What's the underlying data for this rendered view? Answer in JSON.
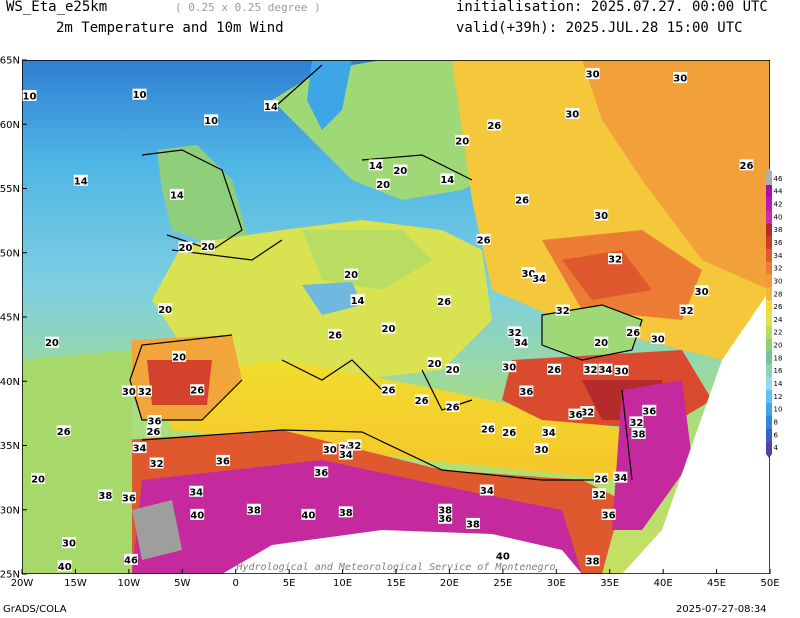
{
  "header": {
    "model": "WS_Eta_e25km",
    "resolution": "( 0.25 x 0.25 degree )",
    "product": "2m Temperature and 10m Wind",
    "init": "initialisation: 2025.07.27. 00:00 UTC",
    "valid": "valid(+39h): 2025.JUL.28 15:00 UTC"
  },
  "footer": {
    "left": "GrADS/COLA",
    "right": "2025-07-27-08:34",
    "watermark": "Hydrological and Meteorological Service of Montenegro"
  },
  "map": {
    "lon_ticks": [
      "20W",
      "15W",
      "10W",
      "5W",
      "0",
      "5E",
      "10E",
      "15E",
      "20E",
      "25E",
      "30E",
      "35E",
      "40E",
      "45E",
      "50E"
    ],
    "lat_ticks": [
      "65N",
      "60N",
      "55N",
      "50N",
      "45N",
      "40N",
      "35N",
      "30N",
      "25N"
    ],
    "contour_labels": [
      {
        "t": "10",
        "lon": -19.3,
        "lat": 62.2
      },
      {
        "t": "10",
        "lon": -9.0,
        "lat": 62.3
      },
      {
        "t": "10",
        "lon": -2.3,
        "lat": 60.3
      },
      {
        "t": "14",
        "lon": 3.3,
        "lat": 61.4
      },
      {
        "t": "14",
        "lon": -14.5,
        "lat": 55.6
      },
      {
        "t": "14",
        "lon": -5.5,
        "lat": 54.5
      },
      {
        "t": "14",
        "lon": 13.1,
        "lat": 56.8
      },
      {
        "t": "14",
        "lon": 19.8,
        "lat": 55.7
      },
      {
        "t": "14",
        "lon": 11.4,
        "lat": 46.3
      },
      {
        "t": "20",
        "lon": -4.7,
        "lat": 50.4
      },
      {
        "t": "20",
        "lon": -2.6,
        "lat": 50.5
      },
      {
        "t": "20",
        "lon": 10.8,
        "lat": 48.3
      },
      {
        "t": "20",
        "lon": 13.8,
        "lat": 55.3
      },
      {
        "t": "20",
        "lon": 15.4,
        "lat": 56.4
      },
      {
        "t": "20",
        "lon": 21.2,
        "lat": 58.7
      },
      {
        "t": "20",
        "lon": -6.6,
        "lat": 45.6
      },
      {
        "t": "20",
        "lon": -17.2,
        "lat": 43.0
      },
      {
        "t": "20",
        "lon": -5.3,
        "lat": 41.9
      },
      {
        "t": "20",
        "lon": 14.3,
        "lat": 44.1
      },
      {
        "t": "20",
        "lon": 18.6,
        "lat": 41.4
      },
      {
        "t": "20",
        "lon": 20.3,
        "lat": 40.9
      },
      {
        "t": "20",
        "lon": 34.2,
        "lat": 43.0
      },
      {
        "t": "20",
        "lon": -18.5,
        "lat": 32.4
      },
      {
        "t": "26",
        "lon": 24.2,
        "lat": 59.9
      },
      {
        "t": "26",
        "lon": 26.8,
        "lat": 54.1
      },
      {
        "t": "26",
        "lon": 23.2,
        "lat": 51.0
      },
      {
        "t": "26",
        "lon": 19.5,
        "lat": 46.2
      },
      {
        "t": "26",
        "lon": 9.3,
        "lat": 43.6
      },
      {
        "t": "26",
        "lon": 14.3,
        "lat": 39.3
      },
      {
        "t": "26",
        "lon": 17.4,
        "lat": 38.5
      },
      {
        "t": "26",
        "lon": 20.3,
        "lat": 38.0
      },
      {
        "t": "26",
        "lon": -3.6,
        "lat": 39.3
      },
      {
        "t": "26",
        "lon": -7.7,
        "lat": 36.1
      },
      {
        "t": "26",
        "lon": -16.1,
        "lat": 36.1
      },
      {
        "t": "26",
        "lon": 23.6,
        "lat": 36.3
      },
      {
        "t": "26",
        "lon": 25.6,
        "lat": 36.0
      },
      {
        "t": "26",
        "lon": 29.8,
        "lat": 40.9
      },
      {
        "t": "26",
        "lon": 37.2,
        "lat": 43.8
      },
      {
        "t": "26",
        "lon": 34.2,
        "lat": 32.4
      },
      {
        "t": "26",
        "lon": 47.8,
        "lat": 56.8
      },
      {
        "t": "30",
        "lon": 33.4,
        "lat": 63.9
      },
      {
        "t": "30",
        "lon": 41.6,
        "lat": 63.6
      },
      {
        "t": "30",
        "lon": 31.5,
        "lat": 60.8
      },
      {
        "t": "30",
        "lon": 34.2,
        "lat": 52.9
      },
      {
        "t": "30",
        "lon": 27.4,
        "lat": 48.4
      },
      {
        "t": "30",
        "lon": 43.6,
        "lat": 47.0
      },
      {
        "t": "30",
        "lon": 39.5,
        "lat": 43.3
      },
      {
        "t": "30",
        "lon": 25.6,
        "lat": 41.1
      },
      {
        "t": "30",
        "lon": 36.1,
        "lat": 40.8
      },
      {
        "t": "30",
        "lon": 28.6,
        "lat": 34.7
      },
      {
        "t": "30",
        "lon": -10.0,
        "lat": 39.2
      },
      {
        "t": "30",
        "lon": -15.6,
        "lat": 27.4
      },
      {
        "t": "30",
        "lon": 8.8,
        "lat": 34.7
      },
      {
        "t": "30",
        "lon": 10.3,
        "lat": 34.8
      },
      {
        "t": "32",
        "lon": -8.5,
        "lat": 39.2
      },
      {
        "t": "32",
        "lon": 26.1,
        "lat": 43.8
      },
      {
        "t": "32",
        "lon": 30.6,
        "lat": 45.5
      },
      {
        "t": "32",
        "lon": 35.5,
        "lat": 49.5
      },
      {
        "t": "32",
        "lon": 42.2,
        "lat": 45.5
      },
      {
        "t": "32",
        "lon": 33.2,
        "lat": 40.9
      },
      {
        "t": "32",
        "lon": 32.9,
        "lat": 37.6
      },
      {
        "t": "32",
        "lon": 37.5,
        "lat": 36.8
      },
      {
        "t": "32",
        "lon": -7.4,
        "lat": 33.6
      },
      {
        "t": "32",
        "lon": 11.1,
        "lat": 35.0
      },
      {
        "t": "32",
        "lon": 34.0,
        "lat": 31.2
      },
      {
        "t": "34",
        "lon": 28.4,
        "lat": 48.0
      },
      {
        "t": "34",
        "lon": 26.7,
        "lat": 43.0
      },
      {
        "t": "34",
        "lon": 34.6,
        "lat": 40.9
      },
      {
        "t": "34",
        "lon": -9.0,
        "lat": 34.8
      },
      {
        "t": "34",
        "lon": -3.7,
        "lat": 31.4
      },
      {
        "t": "34",
        "lon": 10.3,
        "lat": 34.3
      },
      {
        "t": "34",
        "lon": 29.3,
        "lat": 36.0
      },
      {
        "t": "34",
        "lon": 23.5,
        "lat": 31.5
      },
      {
        "t": "34",
        "lon": 36.0,
        "lat": 32.5
      },
      {
        "t": "36",
        "lon": -7.6,
        "lat": 36.9
      },
      {
        "t": "36",
        "lon": -1.2,
        "lat": 33.8
      },
      {
        "t": "36",
        "lon": 27.2,
        "lat": 39.2
      },
      {
        "t": "36",
        "lon": 31.8,
        "lat": 37.4
      },
      {
        "t": "36",
        "lon": 38.7,
        "lat": 37.7
      },
      {
        "t": "36",
        "lon": 8.0,
        "lat": 32.9
      },
      {
        "t": "36",
        "lon": -10.0,
        "lat": 30.9
      },
      {
        "t": "36",
        "lon": 19.6,
        "lat": 29.3
      },
      {
        "t": "36",
        "lon": 34.9,
        "lat": 29.6
      },
      {
        "t": "38",
        "lon": -12.2,
        "lat": 31.1
      },
      {
        "t": "38",
        "lon": 1.7,
        "lat": 30.0
      },
      {
        "t": "38",
        "lon": 10.3,
        "lat": 29.8
      },
      {
        "t": "38",
        "lon": 19.6,
        "lat": 30.0
      },
      {
        "t": "38",
        "lon": 22.2,
        "lat": 28.9
      },
      {
        "t": "38",
        "lon": 37.7,
        "lat": 35.9
      },
      {
        "t": "38",
        "lon": 33.4,
        "lat": 26.0
      },
      {
        "t": "40",
        "lon": -3.6,
        "lat": 29.6
      },
      {
        "t": "40",
        "lon": 6.8,
        "lat": 29.6
      },
      {
        "t": "40",
        "lon": 25.0,
        "lat": 26.4
      },
      {
        "t": "40",
        "lon": -16.0,
        "lat": 25.6
      },
      {
        "t": "46",
        "lon": -9.8,
        "lat": 26.1
      }
    ]
  },
  "colorbar": {
    "labels": [
      "4",
      "6",
      "8",
      "10",
      "12",
      "14",
      "16",
      "18",
      "20",
      "22",
      "24",
      "26",
      "28",
      "30",
      "32",
      "34",
      "36",
      "38",
      "40",
      "42",
      "44",
      "46"
    ],
    "colors": [
      "#5a3ea0",
      "#3a62c4",
      "#2f88d8",
      "#3ea5e6",
      "#5cc4ef",
      "#8fdcf2",
      "#8fd0b8",
      "#74c19a",
      "#8dcf72",
      "#b8dc5c",
      "#e2e34a",
      "#f5d92e",
      "#f6b43a",
      "#f29b3a",
      "#ec7b34",
      "#e0582e",
      "#cf3a2a",
      "#b52a2a",
      "#d12aa5",
      "#c016b8",
      "#a610b0",
      "#b0b0b0"
    ]
  }
}
